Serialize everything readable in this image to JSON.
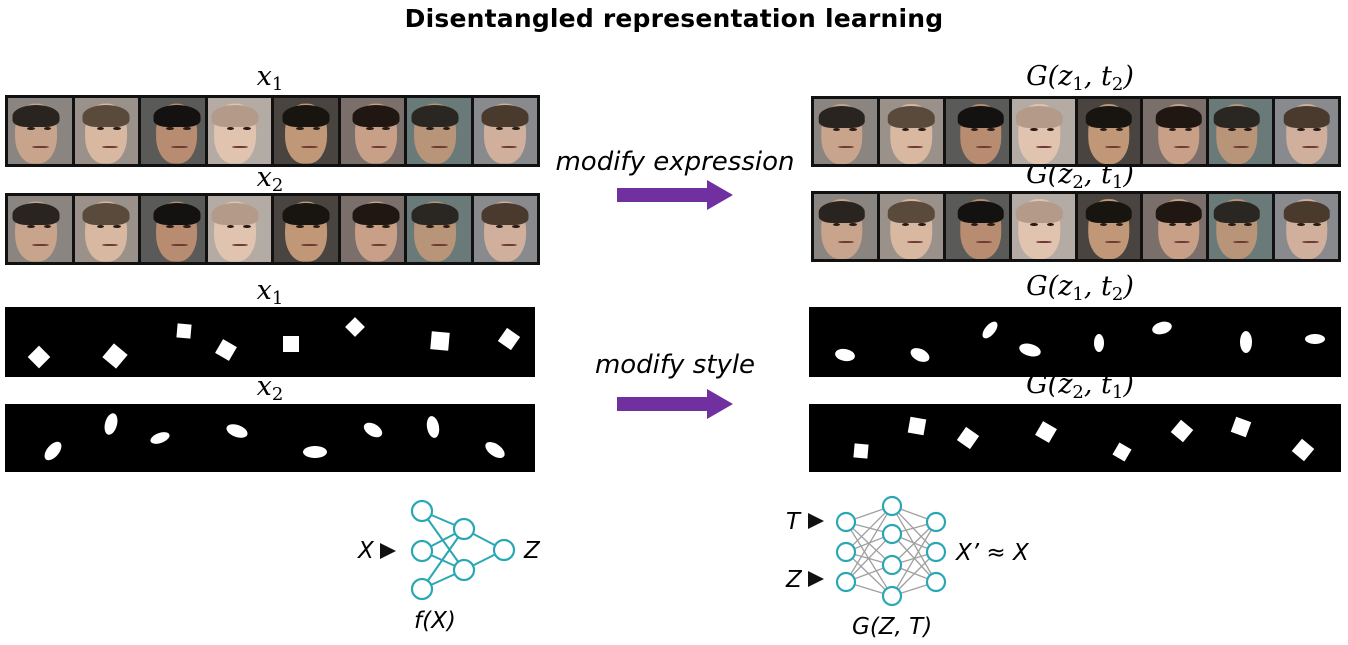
{
  "title": "Disentangled representation learning",
  "labels": {
    "x1": "x",
    "x1_sub": "1",
    "x2": "x",
    "x2_sub": "2",
    "g_prefix": "G(z",
    "g_sep": ", t",
    "g_suffix": ")",
    "sub1": "1",
    "sub2": "2"
  },
  "arrows": {
    "expression": "modify expression",
    "style": "modify style"
  },
  "encoder": {
    "input_label": "X",
    "output_label": "Z",
    "function_label": "f(X)"
  },
  "decoder": {
    "input_t_label": "T",
    "input_z_label": "Z",
    "output_label": "X’ ≈ X",
    "function_label": "G(Z, T)"
  },
  "colors": {
    "arrow": "#7030a0",
    "network": "#2aa7b4",
    "network_edges": "#a0a0a0",
    "strip_background": "#000000",
    "shape_fill": "#ffffff"
  },
  "faces": {
    "row1_left": [
      "face-glasses-profile",
      "face-glasses-frontal",
      "face-dark-hair",
      "face-bald-profile",
      "face-curly-hair",
      "face-woman-dark-hair",
      "face-profile-short-hair",
      "face-frontal-smile"
    ],
    "row2_left": [
      "face-glasses-smile",
      "face-laugh",
      "face-profile-bald",
      "face-profile-dark",
      "face-wide-smile",
      "face-older-glasses",
      "face-woman-smile",
      "face-woman-profile"
    ],
    "row1_right": [
      "face-profile-short-hair",
      "face-glasses-frontal",
      "face-dark-hair",
      "face-bald-profile",
      "face-curly-hair",
      "face-woman-dark-hair",
      "face-profile-short-hair",
      "face-frontal-smile"
    ],
    "row2_right": [
      "face-glasses-smile",
      "face-laugh",
      "face-profile-bald",
      "face-profile-dark",
      "face-wide-smile",
      "face-older-glasses",
      "face-woman-smile",
      "face-woman-profile"
    ]
  }
}
